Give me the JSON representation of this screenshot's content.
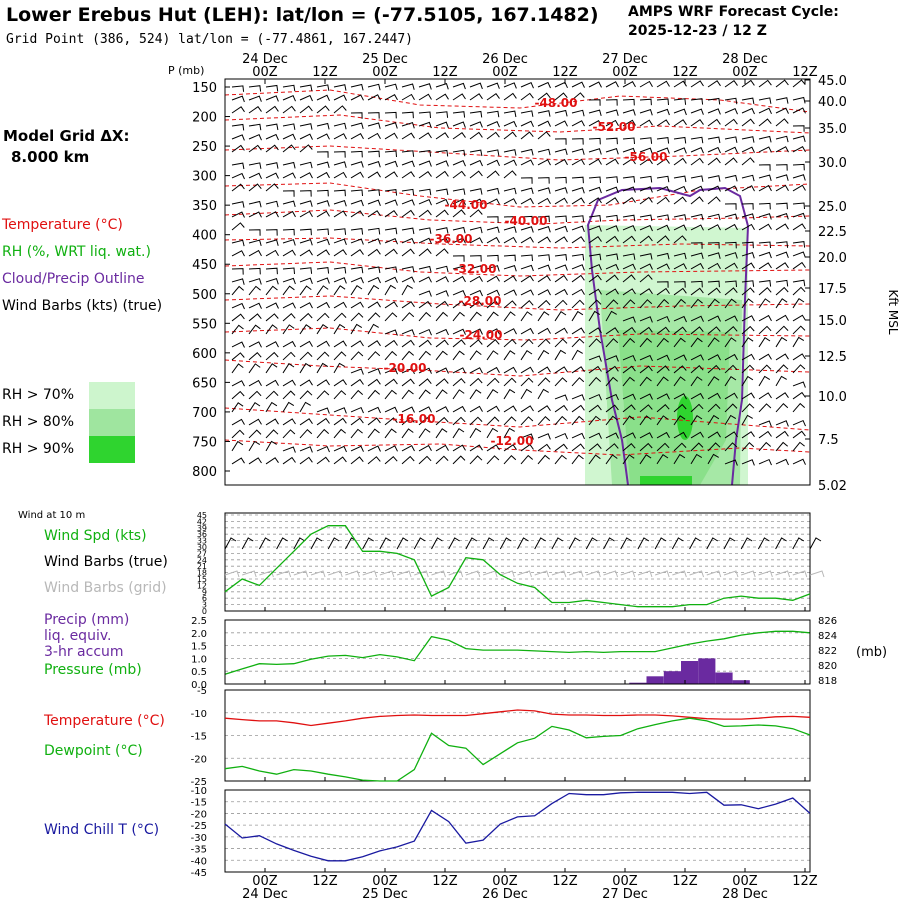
{
  "header": {
    "title": "Lower Erebus Hut (LEH):  lat/lon = (-77.5105, 167.1482)",
    "subtitle": "Grid Point (386, 524) lat/lon = (-77.4861, 167.2447)",
    "cycle_line1": "AMPS WRF Forecast Cycle:",
    "cycle_line2": "2025-12-23 / 12  Z"
  },
  "left_panel": {
    "model_grid": "Model Grid ΔX:",
    "model_res": "8.000 km",
    "legend": [
      {
        "label": "Temperature (°C)",
        "color": "#e01010"
      },
      {
        "label": "RH (%, WRT liq. wat.)",
        "color": "#10b010"
      },
      {
        "label": "Cloud/Precip Outline",
        "color": "#6a2aa0"
      },
      {
        "label": "Wind Barbs (kts) (true)",
        "color": "#000000"
      }
    ],
    "rh_key": [
      {
        "label": "RH > 70%",
        "color": "#cdf5cd"
      },
      {
        "label": "RH > 80%",
        "color": "#9fe59f"
      },
      {
        "label": "RH > 90%",
        "color": "#2fd42f"
      }
    ]
  },
  "time_axis": {
    "ticks": [
      "00Z",
      "12Z",
      "00Z",
      "12Z",
      "00Z",
      "12Z",
      "00Z",
      "12Z",
      "00Z",
      "12Z"
    ],
    "days": [
      "24 Dec",
      "25 Dec",
      "26 Dec",
      "27 Dec",
      "28 Dec"
    ]
  },
  "chart_data": [
    {
      "type": "heatmap",
      "panel": "cross-section",
      "ylabel": "P (mb)",
      "y_right_label": "Kft MSL",
      "pressure_ticks": [
        150,
        200,
        250,
        300,
        350,
        400,
        450,
        500,
        550,
        600,
        650,
        700,
        750,
        800
      ],
      "height_ticks": [
        "45.0",
        "40.0",
        "35.0",
        "30.0",
        "25.0",
        "22.5",
        "20.0",
        "17.5",
        "15.0",
        "12.5",
        "10.0",
        "7.5",
        "5.02"
      ],
      "temperature_contour_labels": [
        "-48.00",
        "-52.00",
        "-56.00",
        "-44.00",
        "-40.00",
        "-36.00",
        "-32.00",
        "-28.00",
        "-24.00",
        "-20.00",
        "-16.00",
        "-12.00"
      ]
    },
    {
      "type": "line",
      "panel": "surface-wind",
      "title": "Wind at 10 m",
      "legend": [
        {
          "label": "Wind Spd (kts)",
          "color": "#10b010"
        },
        {
          "label": "Wind Barbs (true)",
          "color": "#000000"
        },
        {
          "label": "Wind Barbs (grid)",
          "color": "#b8b8b8"
        }
      ],
      "y_ticks": [
        45,
        42,
        39,
        36,
        33,
        30,
        27,
        24,
        21,
        18,
        15,
        12,
        9,
        6,
        3,
        0
      ],
      "ylim": [
        0,
        45
      ],
      "series": [
        {
          "name": "Wind Spd (kts)",
          "color": "#10b010",
          "values": [
            9,
            15,
            12,
            20,
            28,
            36,
            40,
            40,
            28,
            28,
            27,
            24,
            7,
            11,
            25,
            24,
            17,
            13,
            11,
            4,
            4,
            5,
            4,
            3,
            2,
            2,
            2,
            3,
            3,
            6,
            7,
            6,
            6,
            5,
            8
          ]
        }
      ]
    },
    {
      "type": "line",
      "panel": "precip-pressure",
      "legend": [
        {
          "label": "Precip (mm)",
          "color": "#6a2aa0"
        },
        {
          "label": "liq. equiv.",
          "color": "#6a2aa0"
        },
        {
          "label": "3-hr accum",
          "color": "#6a2aa0"
        },
        {
          "label": "Pressure (mb)",
          "color": "#10b010"
        }
      ],
      "y_left_ticks": [
        "2.5",
        "2.0",
        "1.5",
        "1.0",
        "0.5",
        "0.0"
      ],
      "y_right_ticks": [
        "826",
        "824",
        "822",
        "820",
        "818"
      ],
      "y_right_label": "(mb)",
      "ylim_precip": [
        0,
        2.5
      ],
      "ylim_pressure": [
        817.5,
        826
      ],
      "pressure": [
        818.8,
        819.5,
        820.2,
        820.1,
        820.2,
        820.8,
        821.2,
        821.3,
        821.0,
        821.4,
        821.1,
        820.6,
        823.8,
        823.3,
        822.2,
        822.0,
        822.0,
        822.0,
        821.9,
        821.8,
        821.7,
        821.8,
        821.7,
        821.8,
        821.8,
        821.8,
        822.3,
        822.8,
        823.2,
        823.5,
        824.0,
        824.3,
        824.5,
        824.5,
        824.3
      ],
      "precip": [
        0,
        0,
        0,
        0,
        0,
        0,
        0,
        0,
        0,
        0,
        0,
        0,
        0,
        0,
        0,
        0,
        0,
        0,
        0,
        0,
        0,
        0,
        0,
        0,
        0.05,
        0.3,
        0.5,
        0.9,
        1.0,
        0.45,
        0.15,
        0,
        0,
        0,
        0
      ]
    },
    {
      "type": "line",
      "panel": "temperature-dewpoint",
      "legend": [
        {
          "label": "Temperature (°C)",
          "color": "#e01010"
        },
        {
          "label": "Dewpoint (°C)",
          "color": "#10b010"
        }
      ],
      "y_ticks": [
        -5,
        -10,
        -15,
        -20,
        -25
      ],
      "ylim": [
        -25,
        -5
      ],
      "series": [
        {
          "name": "Temperature (°C)",
          "color": "#e01010",
          "values": [
            -11.2,
            -11.5,
            -11.8,
            -11.8,
            -12.2,
            -12.8,
            -12.3,
            -11.8,
            -11.2,
            -10.8,
            -10.6,
            -10.5,
            -10.6,
            -10.6,
            -10.6,
            -10.2,
            -9.8,
            -9.4,
            -9.6,
            -10.3,
            -10.5,
            -10.5,
            -10.6,
            -10.6,
            -10.5,
            -10.5,
            -10.7,
            -11.0,
            -11.3,
            -11.4,
            -11.4,
            -11.2,
            -10.9,
            -10.8,
            -11.0
          ]
        },
        {
          "name": "Dewpoint (°C)",
          "color": "#10b010",
          "values": [
            -22.3,
            -21.8,
            -22.8,
            -23.5,
            -22.5,
            -22.8,
            -23.5,
            -24.1,
            -24.8,
            -25.0,
            -25.0,
            -22.5,
            -14.5,
            -17.2,
            -17.8,
            -21.4,
            -19.0,
            -16.6,
            -15.6,
            -13.0,
            -13.8,
            -15.5,
            -15.2,
            -15.0,
            -13.5,
            -12.6,
            -11.8,
            -11.2,
            -11.8,
            -13.0,
            -12.9,
            -12.7,
            -12.9,
            -13.5,
            -14.9
          ]
        }
      ]
    },
    {
      "type": "line",
      "panel": "wind-chill",
      "legend": [
        {
          "label": "Wind Chill T (°C)",
          "color": "#1a1aa0"
        }
      ],
      "y_ticks": [
        -10,
        -15,
        -20,
        -25,
        -30,
        -35,
        -40,
        -45
      ],
      "ylim": [
        -45,
        -10
      ],
      "series": [
        {
          "name": "Wind Chill T (°C)",
          "color": "#1a1aa0",
          "values": [
            -24.5,
            -30.5,
            -29.5,
            -33.0,
            -35.8,
            -38.3,
            -40.2,
            -40.2,
            -38.5,
            -36.0,
            -34.3,
            -31.8,
            -18.7,
            -23.5,
            -32.7,
            -31.4,
            -24.5,
            -21.5,
            -21.0,
            -15.8,
            -11.5,
            -12.0,
            -12.0,
            -11.2,
            -11.0,
            -11.0,
            -11.0,
            -11.5,
            -11.0,
            -16.5,
            -16.3,
            -18.0,
            -16.0,
            -13.4,
            -20.0
          ]
        }
      ]
    }
  ]
}
